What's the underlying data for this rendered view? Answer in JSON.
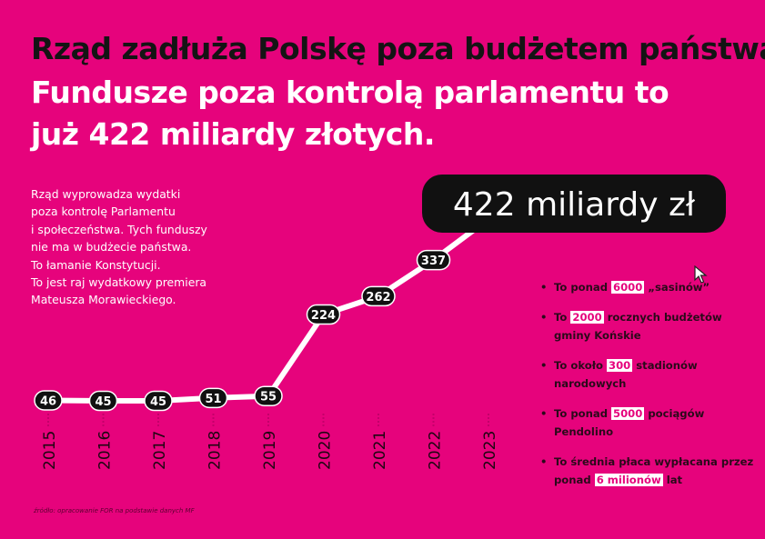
{
  "title": {
    "line1": "Rząd zadłuża Polskę poza budżetem państwa.",
    "line2": "Fundusze poza kontrolą parlamentu to",
    "line3": "już 422 miliardy złotych."
  },
  "description": [
    "Rząd wyprowadza wydatki",
    "poza kontrolę Parlamentu",
    "i społeczeństwa. Tych funduszy",
    "nie ma w budżecie państwa.",
    "To łamanie Konstytucji.",
    "To jest raj wydatkowy premiera",
    "Mateusza Morawieckiego."
  ],
  "bullets": [
    {
      "before": "To ponad ",
      "highlight": "6000",
      "after": " „sasinów”"
    },
    {
      "before": "To ",
      "highlight": "2000",
      "after": " rocznych budżetów gminy Końskie"
    },
    {
      "before": "To około ",
      "highlight": "300",
      "after": " stadionów narodowych"
    },
    {
      "before": "To ponad ",
      "highlight": "5000",
      "after": " pociągów Pendolino"
    },
    {
      "before": "To średnia płaca wypłacana przez ponad ",
      "highlight": "6 milionów",
      "after": " lat"
    }
  ],
  "bullet_symbol": "•",
  "source": "źródło: opracowanie FOR na podstawie danych MF",
  "colors": {
    "background": "#e6037c",
    "line": "#ffffff",
    "label_bg": "#111111",
    "label_text": "#ffffff",
    "title_dark": "#141414"
  },
  "chart_data": {
    "type": "line",
    "x": [
      "2015",
      "2016",
      "2017",
      "2018",
      "2019",
      "2020",
      "2021",
      "2022",
      "2023"
    ],
    "values": [
      46,
      45,
      45,
      51,
      55,
      224,
      262,
      337,
      422
    ],
    "data_labels": [
      "46",
      "45",
      "45",
      "51",
      "55",
      "224",
      "262",
      "337",
      "422 miliardy zł"
    ],
    "title": "",
    "xlabel": "",
    "ylabel": "",
    "ylim": [
      0,
      422
    ],
    "grid": false,
    "legend": "none"
  }
}
